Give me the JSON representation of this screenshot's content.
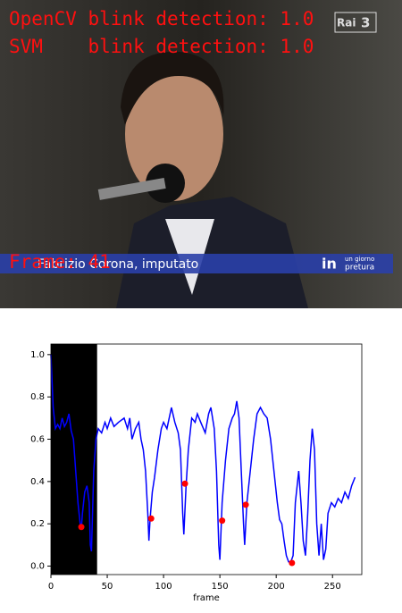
{
  "video_frame": {
    "overlay_lines": [
      "OpenCV blink detection: 1.0",
      "SVM    blink detection: 1.0"
    ],
    "frame_label": "Frame: 41",
    "caption_name": "Fabrizio Corona, imputato",
    "channel_logo": "Rai",
    "channel_number": "3",
    "show_logo": "in",
    "show_name_top": "un giorno",
    "show_name_bottom": "pretura"
  },
  "chart_data": {
    "type": "line",
    "xlabel": "frame",
    "xlim": [
      0,
      276
    ],
    "ylim": [
      -0.04,
      1.05
    ],
    "xticks": [
      0,
      50,
      100,
      150,
      200,
      250
    ],
    "yticks": [
      {
        "value": 0,
        "label": "0.0"
      },
      0.2,
      0.4,
      0.6,
      0.8,
      {
        "value": 1,
        "label": "1.0"
      }
    ],
    "shaded_xrange": [
      0,
      41
    ],
    "shade_color": "#000000",
    "series": [
      {
        "type": "line",
        "color": "#0000ff",
        "x": [
          0,
          2,
          4,
          6,
          8,
          10,
          12,
          14,
          16,
          18,
          20,
          22,
          24,
          26,
          27,
          28,
          30,
          32,
          34,
          35,
          36,
          38,
          40,
          42,
          45,
          48,
          50,
          53,
          56,
          60,
          65,
          68,
          70,
          72,
          75,
          78,
          80,
          82,
          84,
          86,
          87,
          88,
          90,
          92,
          95,
          98,
          100,
          103,
          107,
          110,
          113,
          115,
          117,
          118,
          120,
          122,
          125,
          128,
          130,
          133,
          137,
          140,
          142,
          145,
          147,
          149,
          150,
          152,
          155,
          158,
          161,
          163,
          165,
          167,
          169,
          171,
          172,
          174,
          177,
          180,
          183,
          186,
          189,
          192,
          195,
          198,
          201,
          203,
          205,
          207,
          209,
          211,
          213,
          215,
          217,
          220,
          222,
          224,
          226,
          228,
          230,
          232,
          234,
          236,
          238,
          240,
          242,
          244,
          246,
          249,
          252,
          255,
          258,
          261,
          264,
          267,
          270
        ],
        "values": [
          1.0,
          0.75,
          0.65,
          0.67,
          0.65,
          0.7,
          0.66,
          0.68,
          0.72,
          0.64,
          0.6,
          0.45,
          0.3,
          0.2,
          0.18,
          0.25,
          0.35,
          0.38,
          0.3,
          0.1,
          0.07,
          0.45,
          0.6,
          0.65,
          0.63,
          0.68,
          0.65,
          0.7,
          0.66,
          0.68,
          0.7,
          0.65,
          0.7,
          0.6,
          0.65,
          0.68,
          0.6,
          0.55,
          0.45,
          0.25,
          0.12,
          0.22,
          0.35,
          0.42,
          0.55,
          0.65,
          0.68,
          0.65,
          0.75,
          0.68,
          0.63,
          0.55,
          0.25,
          0.15,
          0.38,
          0.55,
          0.7,
          0.68,
          0.72,
          0.68,
          0.63,
          0.72,
          0.75,
          0.65,
          0.45,
          0.1,
          0.03,
          0.3,
          0.5,
          0.65,
          0.7,
          0.72,
          0.78,
          0.7,
          0.45,
          0.2,
          0.1,
          0.3,
          0.45,
          0.6,
          0.72,
          0.75,
          0.72,
          0.7,
          0.6,
          0.45,
          0.3,
          0.22,
          0.2,
          0.12,
          0.05,
          0.02,
          0.02,
          0.05,
          0.3,
          0.45,
          0.3,
          0.12,
          0.05,
          0.25,
          0.5,
          0.65,
          0.55,
          0.2,
          0.05,
          0.2,
          0.03,
          0.08,
          0.25,
          0.3,
          0.28,
          0.32,
          0.3,
          0.35,
          0.32,
          0.38,
          0.42
        ]
      },
      {
        "type": "scatter",
        "color": "#ff0000",
        "x": [
          27,
          89,
          119,
          152,
          173,
          214
        ],
        "values": [
          0.185,
          0.225,
          0.39,
          0.215,
          0.29,
          0.015
        ]
      }
    ]
  }
}
